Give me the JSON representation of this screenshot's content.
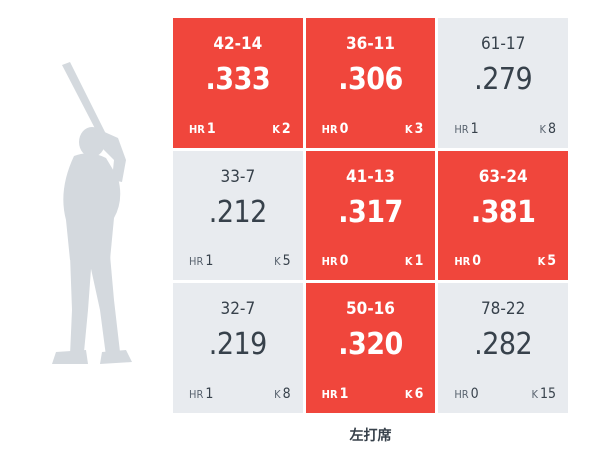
{
  "zone_chart": {
    "cells": [
      {
        "record": "42-14",
        "avg": ".333",
        "hr_label": "HR",
        "hr": "1",
        "k_label": "K",
        "k": "2",
        "hot": true
      },
      {
        "record": "36-11",
        "avg": ".306",
        "hr_label": "HR",
        "hr": "0",
        "k_label": "K",
        "k": "3",
        "hot": true
      },
      {
        "record": "61-17",
        "avg": ".279",
        "hr_label": "HR",
        "hr": "1",
        "k_label": "K",
        "k": "8",
        "hot": false
      },
      {
        "record": "33-7",
        "avg": ".212",
        "hr_label": "HR",
        "hr": "1",
        "k_label": "K",
        "k": "5",
        "hot": false
      },
      {
        "record": "41-13",
        "avg": ".317",
        "hr_label": "HR",
        "hr": "0",
        "k_label": "K",
        "k": "1",
        "hot": true
      },
      {
        "record": "63-24",
        "avg": ".381",
        "hr_label": "HR",
        "hr": "0",
        "k_label": "K",
        "k": "5",
        "hot": true
      },
      {
        "record": "32-7",
        "avg": ".219",
        "hr_label": "HR",
        "hr": "1",
        "k_label": "K",
        "k": "8",
        "hot": false
      },
      {
        "record": "50-16",
        "avg": ".320",
        "hr_label": "HR",
        "hr": "1",
        "k_label": "K",
        "k": "6",
        "hot": true
      },
      {
        "record": "78-22",
        "avg": ".282",
        "hr_label": "HR",
        "hr": "0",
        "k_label": "K",
        "k": "15",
        "hot": false
      }
    ],
    "caption": "左打席"
  },
  "colors": {
    "hot": "#f0463c",
    "cold": "#e8ebef",
    "silhouette": "#d4d9de"
  },
  "icons": {
    "batter": "batter-silhouette-icon"
  }
}
